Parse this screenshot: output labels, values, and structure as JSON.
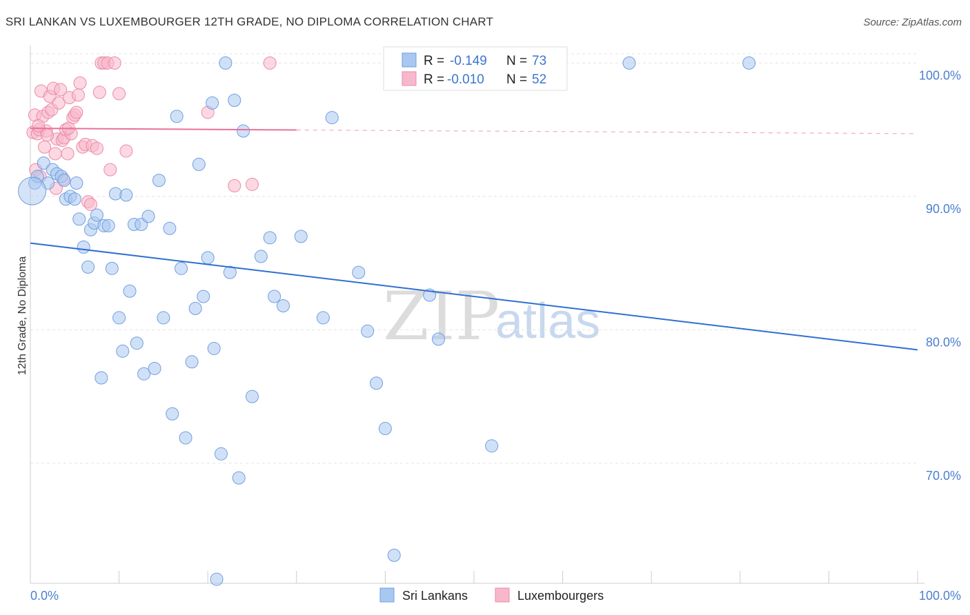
{
  "title": "SRI LANKAN VS LUXEMBOURGER 12TH GRADE, NO DIPLOMA CORRELATION CHART",
  "source": "Source: ZipAtlas.com",
  "watermark": {
    "zip": "ZIP",
    "atlas": "atlas"
  },
  "colors": {
    "blue_fill": "#a9c8f0",
    "blue_stroke": "#6f9ee0",
    "blue_line": "#2e6fd1",
    "pink_fill": "#f7b8cb",
    "pink_stroke": "#ec8aa8",
    "pink_line": "#e8709a",
    "grid": "#e3e3e3",
    "tick_text": "#4a7fd0"
  },
  "legend": {
    "r_label": "R =",
    "n_label": "N =",
    "rows": [
      {
        "r": "-0.149",
        "n": "73"
      },
      {
        "r": "-0.010",
        "n": "52"
      }
    ]
  },
  "bottom_legend": [
    "Sri Lankans",
    "Luxembourgers"
  ],
  "chart_data": {
    "type": "scatter",
    "title": "SRI LANKAN VS LUXEMBOURGER 12TH GRADE, NO DIPLOMA CORRELATION CHART",
    "xlabel": "",
    "ylabel": "12th Grade, No Diploma",
    "xlim": [
      0,
      100
    ],
    "ylim": [
      61,
      101
    ],
    "x_tick_labels": [
      "0.0%",
      "100.0%"
    ],
    "y_ticks": [
      100,
      90,
      80,
      70
    ],
    "y_tick_labels": [
      "100.0%",
      "90.0%",
      "80.0%",
      "70.0%"
    ],
    "series": [
      {
        "name": "Sri Lankans",
        "r": -0.149,
        "n": 73,
        "trend": {
          "x": [
            0,
            100
          ],
          "y": [
            86.5,
            78.5
          ],
          "dashed_from": null
        },
        "points": [
          [
            0.5,
            91.0
          ],
          [
            0.8,
            91.5
          ],
          [
            1.5,
            92.5
          ],
          [
            2.0,
            91.0
          ],
          [
            2.5,
            92.0
          ],
          [
            3.0,
            91.7
          ],
          [
            3.5,
            91.5
          ],
          [
            3.8,
            91.2
          ],
          [
            4.0,
            89.8
          ],
          [
            4.5,
            90.0
          ],
          [
            5.0,
            89.8
          ],
          [
            5.2,
            91.0
          ],
          [
            5.5,
            88.3
          ],
          [
            6.0,
            86.2
          ],
          [
            6.5,
            84.7
          ],
          [
            6.8,
            87.5
          ],
          [
            7.2,
            88.0
          ],
          [
            7.5,
            88.6
          ],
          [
            8.0,
            76.4
          ],
          [
            8.3,
            87.8
          ],
          [
            8.8,
            87.8
          ],
          [
            9.2,
            84.6
          ],
          [
            9.6,
            90.2
          ],
          [
            10.0,
            80.9
          ],
          [
            10.4,
            78.4
          ],
          [
            10.8,
            90.1
          ],
          [
            11.2,
            82.9
          ],
          [
            11.7,
            87.9
          ],
          [
            12.0,
            79.0
          ],
          [
            12.5,
            87.9
          ],
          [
            12.8,
            76.7
          ],
          [
            13.3,
            88.5
          ],
          [
            14.0,
            77.1
          ],
          [
            14.5,
            91.2
          ],
          [
            15.0,
            80.9
          ],
          [
            15.7,
            87.6
          ],
          [
            16.0,
            73.7
          ],
          [
            16.5,
            96.0
          ],
          [
            17.0,
            84.6
          ],
          [
            17.5,
            71.9
          ],
          [
            18.2,
            77.6
          ],
          [
            18.6,
            81.6
          ],
          [
            19.0,
            92.4
          ],
          [
            19.5,
            82.5
          ],
          [
            20.0,
            85.4
          ],
          [
            20.5,
            97.0
          ],
          [
            20.7,
            78.6
          ],
          [
            21.0,
            61.3
          ],
          [
            21.5,
            70.7
          ],
          [
            22.0,
            100.0
          ],
          [
            22.5,
            84.3
          ],
          [
            23.0,
            97.2
          ],
          [
            23.5,
            68.9
          ],
          [
            24.0,
            94.9
          ],
          [
            25.0,
            75.0
          ],
          [
            26.0,
            85.5
          ],
          [
            27.0,
            86.9
          ],
          [
            27.5,
            82.5
          ],
          [
            28.5,
            81.8
          ],
          [
            30.5,
            87.0
          ],
          [
            33.0,
            80.9
          ],
          [
            34.0,
            95.9
          ],
          [
            37.0,
            84.3
          ],
          [
            38.0,
            79.9
          ],
          [
            39.0,
            76.0
          ],
          [
            40.0,
            72.6
          ],
          [
            41.0,
            63.1
          ],
          [
            45.0,
            82.6
          ],
          [
            46.0,
            79.3
          ],
          [
            52.0,
            71.3
          ],
          [
            67.5,
            100.0
          ],
          [
            81.0,
            100.0
          ],
          [
            0.2,
            90.4
          ]
        ]
      },
      {
        "name": "Luxembourgers",
        "r": -0.01,
        "n": 52,
        "trend": {
          "x": [
            0,
            100
          ],
          "y": [
            95.1,
            94.7
          ],
          "dashed_from": 30
        },
        "points": [
          [
            0.3,
            94.8
          ],
          [
            0.5,
            96.1
          ],
          [
            0.8,
            94.7
          ],
          [
            1.0,
            95.0
          ],
          [
            1.2,
            97.9
          ],
          [
            1.4,
            96.0
          ],
          [
            1.6,
            93.7
          ],
          [
            1.8,
            94.9
          ],
          [
            2.0,
            96.3
          ],
          [
            2.2,
            97.5
          ],
          [
            2.4,
            96.5
          ],
          [
            2.6,
            98.1
          ],
          [
            2.8,
            93.2
          ],
          [
            3.0,
            94.3
          ],
          [
            3.2,
            97.0
          ],
          [
            3.4,
            98.0
          ],
          [
            3.6,
            94.2
          ],
          [
            3.8,
            94.4
          ],
          [
            4.0,
            95.0
          ],
          [
            4.2,
            93.2
          ],
          [
            4.4,
            97.4
          ],
          [
            4.6,
            94.7
          ],
          [
            4.8,
            95.9
          ],
          [
            5.0,
            96.1
          ],
          [
            5.2,
            96.3
          ],
          [
            5.4,
            97.6
          ],
          [
            5.6,
            98.5
          ],
          [
            5.9,
            93.7
          ],
          [
            6.2,
            93.9
          ],
          [
            6.5,
            89.6
          ],
          [
            7.0,
            93.8
          ],
          [
            7.5,
            93.6
          ],
          [
            7.8,
            97.8
          ],
          [
            8.0,
            100.0
          ],
          [
            8.3,
            100.0
          ],
          [
            8.7,
            100.0
          ],
          [
            9.0,
            92.0
          ],
          [
            9.5,
            100.0
          ],
          [
            10.0,
            97.7
          ],
          [
            10.8,
            93.4
          ],
          [
            20.0,
            96.3
          ],
          [
            23.0,
            90.8
          ],
          [
            25.0,
            90.9
          ],
          [
            27.0,
            100.0
          ],
          [
            0.6,
            92.0
          ],
          [
            1.1,
            91.5
          ],
          [
            2.9,
            90.6
          ],
          [
            3.7,
            91.3
          ],
          [
            6.8,
            89.4
          ],
          [
            0.9,
            95.3
          ],
          [
            1.9,
            94.6
          ],
          [
            4.3,
            95.1
          ]
        ]
      }
    ]
  }
}
